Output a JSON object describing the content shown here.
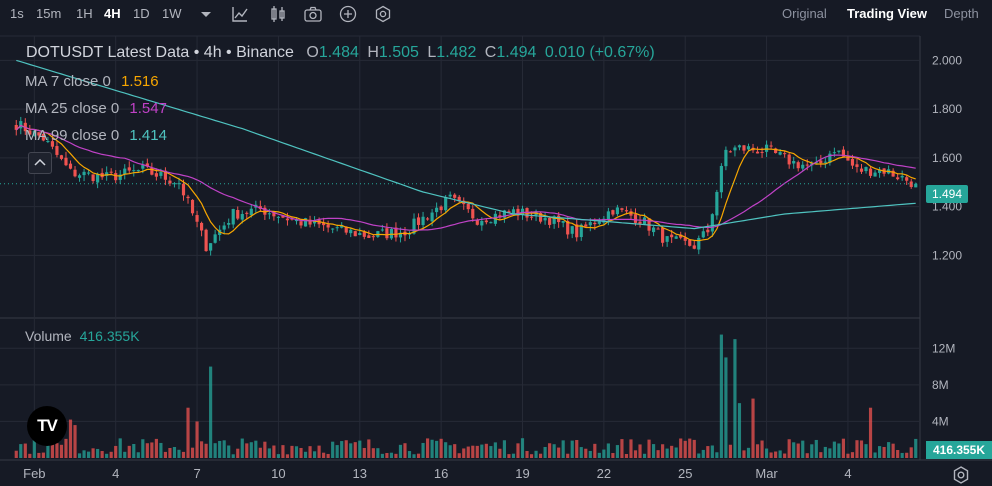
{
  "toolbar": {
    "intervals": [
      "1s",
      "15m",
      "1H",
      "4H",
      "1D",
      "1W"
    ],
    "active_interval": "4H",
    "views": [
      "Original",
      "Trading View",
      "Depth"
    ],
    "active_view": "Trading View",
    "icons": [
      "chevron-down-icon",
      "indicator-icon",
      "candle-type-icon",
      "camera-icon",
      "plus-circle-icon",
      "settings-icon"
    ]
  },
  "legend": {
    "title": "DOTUSDT Latest Data • 4h • Binance",
    "o_label": "O",
    "o_value": "1.484",
    "h_label": "H",
    "h_value": "1.505",
    "l_label": "L",
    "l_value": "1.482",
    "c_label": "C",
    "c_value": "1.494",
    "change": "0.010 (+0.67%)",
    "ma7_label": "MA 7 close 0",
    "ma7_value": "1.516",
    "ma25_label": "MA 25 close 0",
    "ma25_value": "1.547",
    "ma99_label": "MA 99 close 0",
    "ma99_value": "1.414",
    "volume_label": "Volume",
    "volume_value": "416.355K"
  },
  "price_tag": "1.494",
  "volume_tag": "416.355K",
  "logo_text": "TV",
  "colors": {
    "up": "#26a69a",
    "down": "#ef5350",
    "ma7": "#f7a600",
    "ma25": "#c042c7",
    "ma99": "#4fc3c0",
    "bg": "#161a25",
    "grid": "#262a36"
  },
  "chart_data": {
    "type": "candlestick",
    "price_axis": {
      "ticks": [
        2.0,
        1.8,
        1.6,
        1.4,
        1.2
      ],
      "tick_labels": [
        "2.000",
        "1.800",
        "1.600",
        "1.400",
        "1.200"
      ],
      "ylim": [
        1.05,
        2.1
      ]
    },
    "volume_axis": {
      "ticks": [
        12,
        8,
        4
      ],
      "tick_labels": [
        "12M",
        "8M",
        "4M"
      ],
      "ylim": [
        0,
        14
      ]
    },
    "x_labels": [
      "Feb",
      "4",
      "7",
      "10",
      "13",
      "16",
      "19",
      "22",
      "25",
      "Mar",
      "4"
    ],
    "x_label_index": [
      4,
      22,
      40,
      58,
      76,
      94,
      112,
      130,
      148,
      166,
      184
    ],
    "candles_count": 200,
    "waypoints": [
      {
        "i": 0,
        "p": 1.74
      },
      {
        "i": 6,
        "p": 1.68
      },
      {
        "i": 12,
        "p": 1.54
      },
      {
        "i": 20,
        "p": 1.52
      },
      {
        "i": 28,
        "p": 1.55
      },
      {
        "i": 36,
        "p": 1.5
      },
      {
        "i": 42,
        "p": 1.24
      },
      {
        "i": 48,
        "p": 1.37
      },
      {
        "i": 54,
        "p": 1.39
      },
      {
        "i": 62,
        "p": 1.34
      },
      {
        "i": 70,
        "p": 1.31
      },
      {
        "i": 78,
        "p": 1.28
      },
      {
        "i": 86,
        "p": 1.3
      },
      {
        "i": 96,
        "p": 1.43
      },
      {
        "i": 102,
        "p": 1.35
      },
      {
        "i": 110,
        "p": 1.38
      },
      {
        "i": 118,
        "p": 1.35
      },
      {
        "i": 124,
        "p": 1.29
      },
      {
        "i": 132,
        "p": 1.39
      },
      {
        "i": 138,
        "p": 1.35
      },
      {
        "i": 144,
        "p": 1.26
      },
      {
        "i": 150,
        "p": 1.24
      },
      {
        "i": 153,
        "p": 1.3
      },
      {
        "i": 157,
        "p": 1.63
      },
      {
        "i": 160,
        "p": 1.64
      },
      {
        "i": 166,
        "p": 1.63
      },
      {
        "i": 172,
        "p": 1.58
      },
      {
        "i": 177,
        "p": 1.56
      },
      {
        "i": 181,
        "p": 1.64
      },
      {
        "i": 186,
        "p": 1.55
      },
      {
        "i": 192,
        "p": 1.55
      },
      {
        "i": 199,
        "p": 1.494
      }
    ],
    "ma99_waypoints": [
      {
        "i": 0,
        "p": 2.0
      },
      {
        "i": 50,
        "p": 1.72
      },
      {
        "i": 90,
        "p": 1.46
      },
      {
        "i": 110,
        "p": 1.37
      },
      {
        "i": 150,
        "p": 1.31
      },
      {
        "i": 170,
        "p": 1.37
      },
      {
        "i": 199,
        "p": 1.414
      }
    ],
    "volume_spikes": [
      {
        "i": 38,
        "v": 5.5
      },
      {
        "i": 40,
        "v": 4.0
      },
      {
        "i": 43,
        "v": 10.0
      },
      {
        "i": 156,
        "v": 13.5
      },
      {
        "i": 157,
        "v": 11.0
      },
      {
        "i": 159,
        "v": 13.0
      },
      {
        "i": 160,
        "v": 6.0
      },
      {
        "i": 163,
        "v": 6.5
      },
      {
        "i": 189,
        "v": 5.5
      },
      {
        "i": 12,
        "v": 4.2
      },
      {
        "i": 13,
        "v": 3.6
      }
    ],
    "last_close": 1.494
  }
}
